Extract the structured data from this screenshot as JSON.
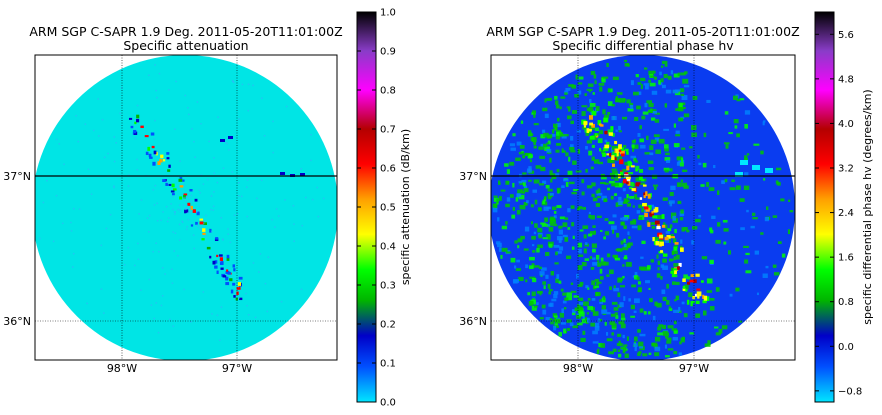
{
  "chart_data": [
    {
      "type": "heatmap",
      "title": "ARM SGP C-SAPR 1.9 Deg. 2011-05-20T11:01:00Z",
      "subtitle": "Specific attenuation",
      "lat_ticks": [
        "36°N",
        "37°N"
      ],
      "lon_ticks": [
        "98°W",
        "97°W"
      ],
      "grid": true,
      "colorbar": {
        "label": "specific attenuation (dB/km)",
        "min": 0.0,
        "max": 1.0,
        "tick_values": [
          0.0,
          0.1,
          0.2,
          0.3,
          0.4,
          0.5,
          0.6,
          0.7,
          0.8,
          0.9,
          1.0
        ],
        "tick_labels": [
          "0.0",
          "0.1",
          "0.2",
          "0.3",
          "0.4",
          "0.5",
          "0.6",
          "0.7",
          "0.8",
          "0.9",
          "1.0"
        ]
      }
    },
    {
      "type": "heatmap",
      "title": "ARM SGP C-SAPR 1.9 Deg. 2011-05-20T11:01:00Z",
      "subtitle": "Specific differential phase hv",
      "lat_ticks": [
        "36°N",
        "37°N"
      ],
      "lon_ticks": [
        "98°W",
        "97°W"
      ],
      "grid": true,
      "colorbar": {
        "label": "specific differential phase hv (degrees/km)",
        "min": -1.0,
        "max": 6.0,
        "tick_values": [
          -0.8,
          0.0,
          0.8,
          1.6,
          2.4,
          3.2,
          4.0,
          4.8,
          5.6
        ],
        "tick_labels": [
          "−0.8",
          "0.0",
          "0.8",
          "1.6",
          "2.4",
          "3.2",
          "4.0",
          "4.8",
          "5.6"
        ]
      }
    }
  ],
  "colors": {
    "spectrum": [
      "#00e6ff",
      "#0050ff",
      "#0000c8",
      "#00b400",
      "#00ff00",
      "#ffff00",
      "#ffa000",
      "#ff0000",
      "#b40000",
      "#ff00ff",
      "#8a3cc8",
      "#000000"
    ],
    "background_left": "#00e5e5",
    "background_right": "#0a3cf0"
  }
}
